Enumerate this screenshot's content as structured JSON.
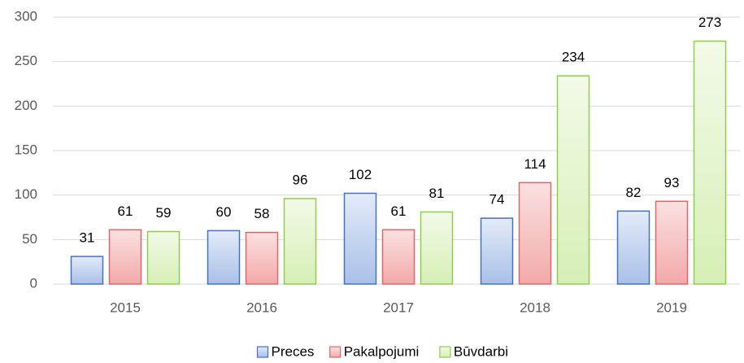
{
  "chart_data": {
    "type": "bar",
    "categories": [
      "2015",
      "2016",
      "2017",
      "2018",
      "2019"
    ],
    "series": [
      {
        "name": "Preces",
        "color": "#4472c4",
        "values": [
          31,
          60,
          102,
          74,
          82
        ]
      },
      {
        "name": "Pakalpojumi",
        "color": "#e06666",
        "values": [
          61,
          58,
          61,
          114,
          93
        ]
      },
      {
        "name": "Būvdarbi",
        "color": "#8fce4a",
        "values": [
          59,
          96,
          81,
          234,
          273
        ]
      }
    ],
    "ylim": [
      0,
      300
    ],
    "yticks": [
      0,
      50,
      100,
      150,
      200,
      250,
      300
    ],
    "grid": true,
    "legend": "bottom"
  }
}
